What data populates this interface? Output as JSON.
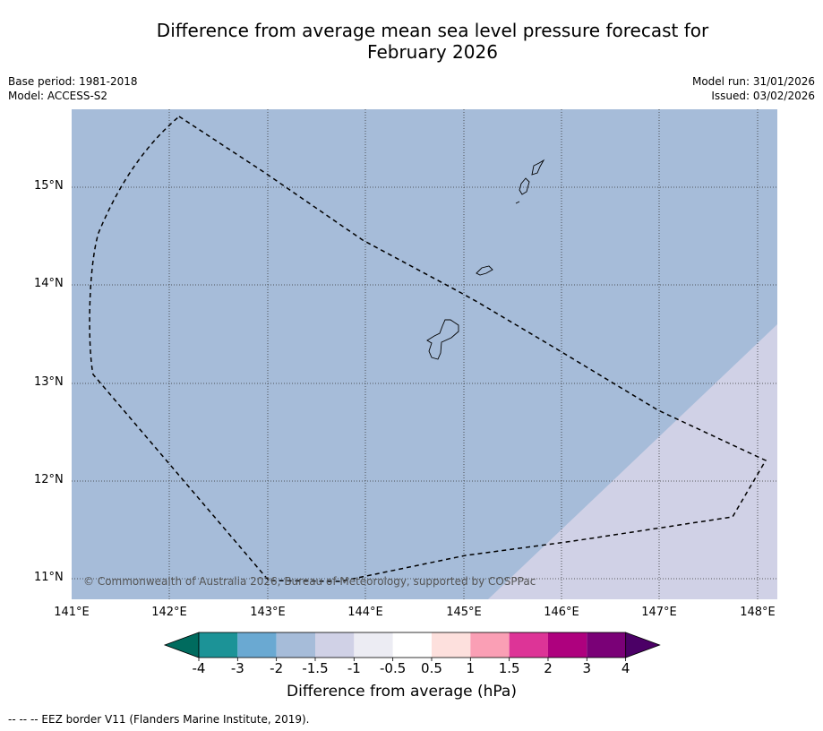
{
  "title": {
    "line1": "Difference from average mean sea level pressure forecast for",
    "line2": "February 2026"
  },
  "meta": {
    "base_period": "Base period: 1981-2018",
    "model": "Model: ACCESS-S2",
    "model_run": "Model run: 31/01/2026",
    "issued": "Issued: 03/02/2026"
  },
  "map": {
    "ocean_color": "#a6bcd9",
    "positive_zone_color": "#d0d1e6",
    "lat_labels": [
      "15°N",
      "14°N",
      "13°N",
      "12°N",
      "11°N"
    ],
    "lon_labels": [
      "141°E",
      "142°E",
      "143°E",
      "144°E",
      "145°E",
      "146°E",
      "147°E",
      "148°E"
    ],
    "copyright": "© Commonwealth of Australia 2026, Bureau of Meteorology, supported by COSPPac"
  },
  "colorbar": {
    "title": "Difference from average (hPa)",
    "ticks": [
      "-4",
      "-3",
      "-2",
      "-1.5",
      "-1",
      "-0.5",
      "0.5",
      "1",
      "1.5",
      "2",
      "3",
      "4"
    ],
    "under_color": "#006b5e",
    "over_color": "#4b0066",
    "colors": [
      "#1c9397",
      "#6aa9d2",
      "#a6bcd9",
      "#d0d1e6",
      "#ececf3",
      "#ffffff",
      "#fde0dd",
      "#fa9fb5",
      "#dd3497",
      "#ae017e",
      "#7a0177"
    ]
  },
  "footnote": "--  --  -- EEZ border V11 (Flanders Marine Institute, 2019)."
}
